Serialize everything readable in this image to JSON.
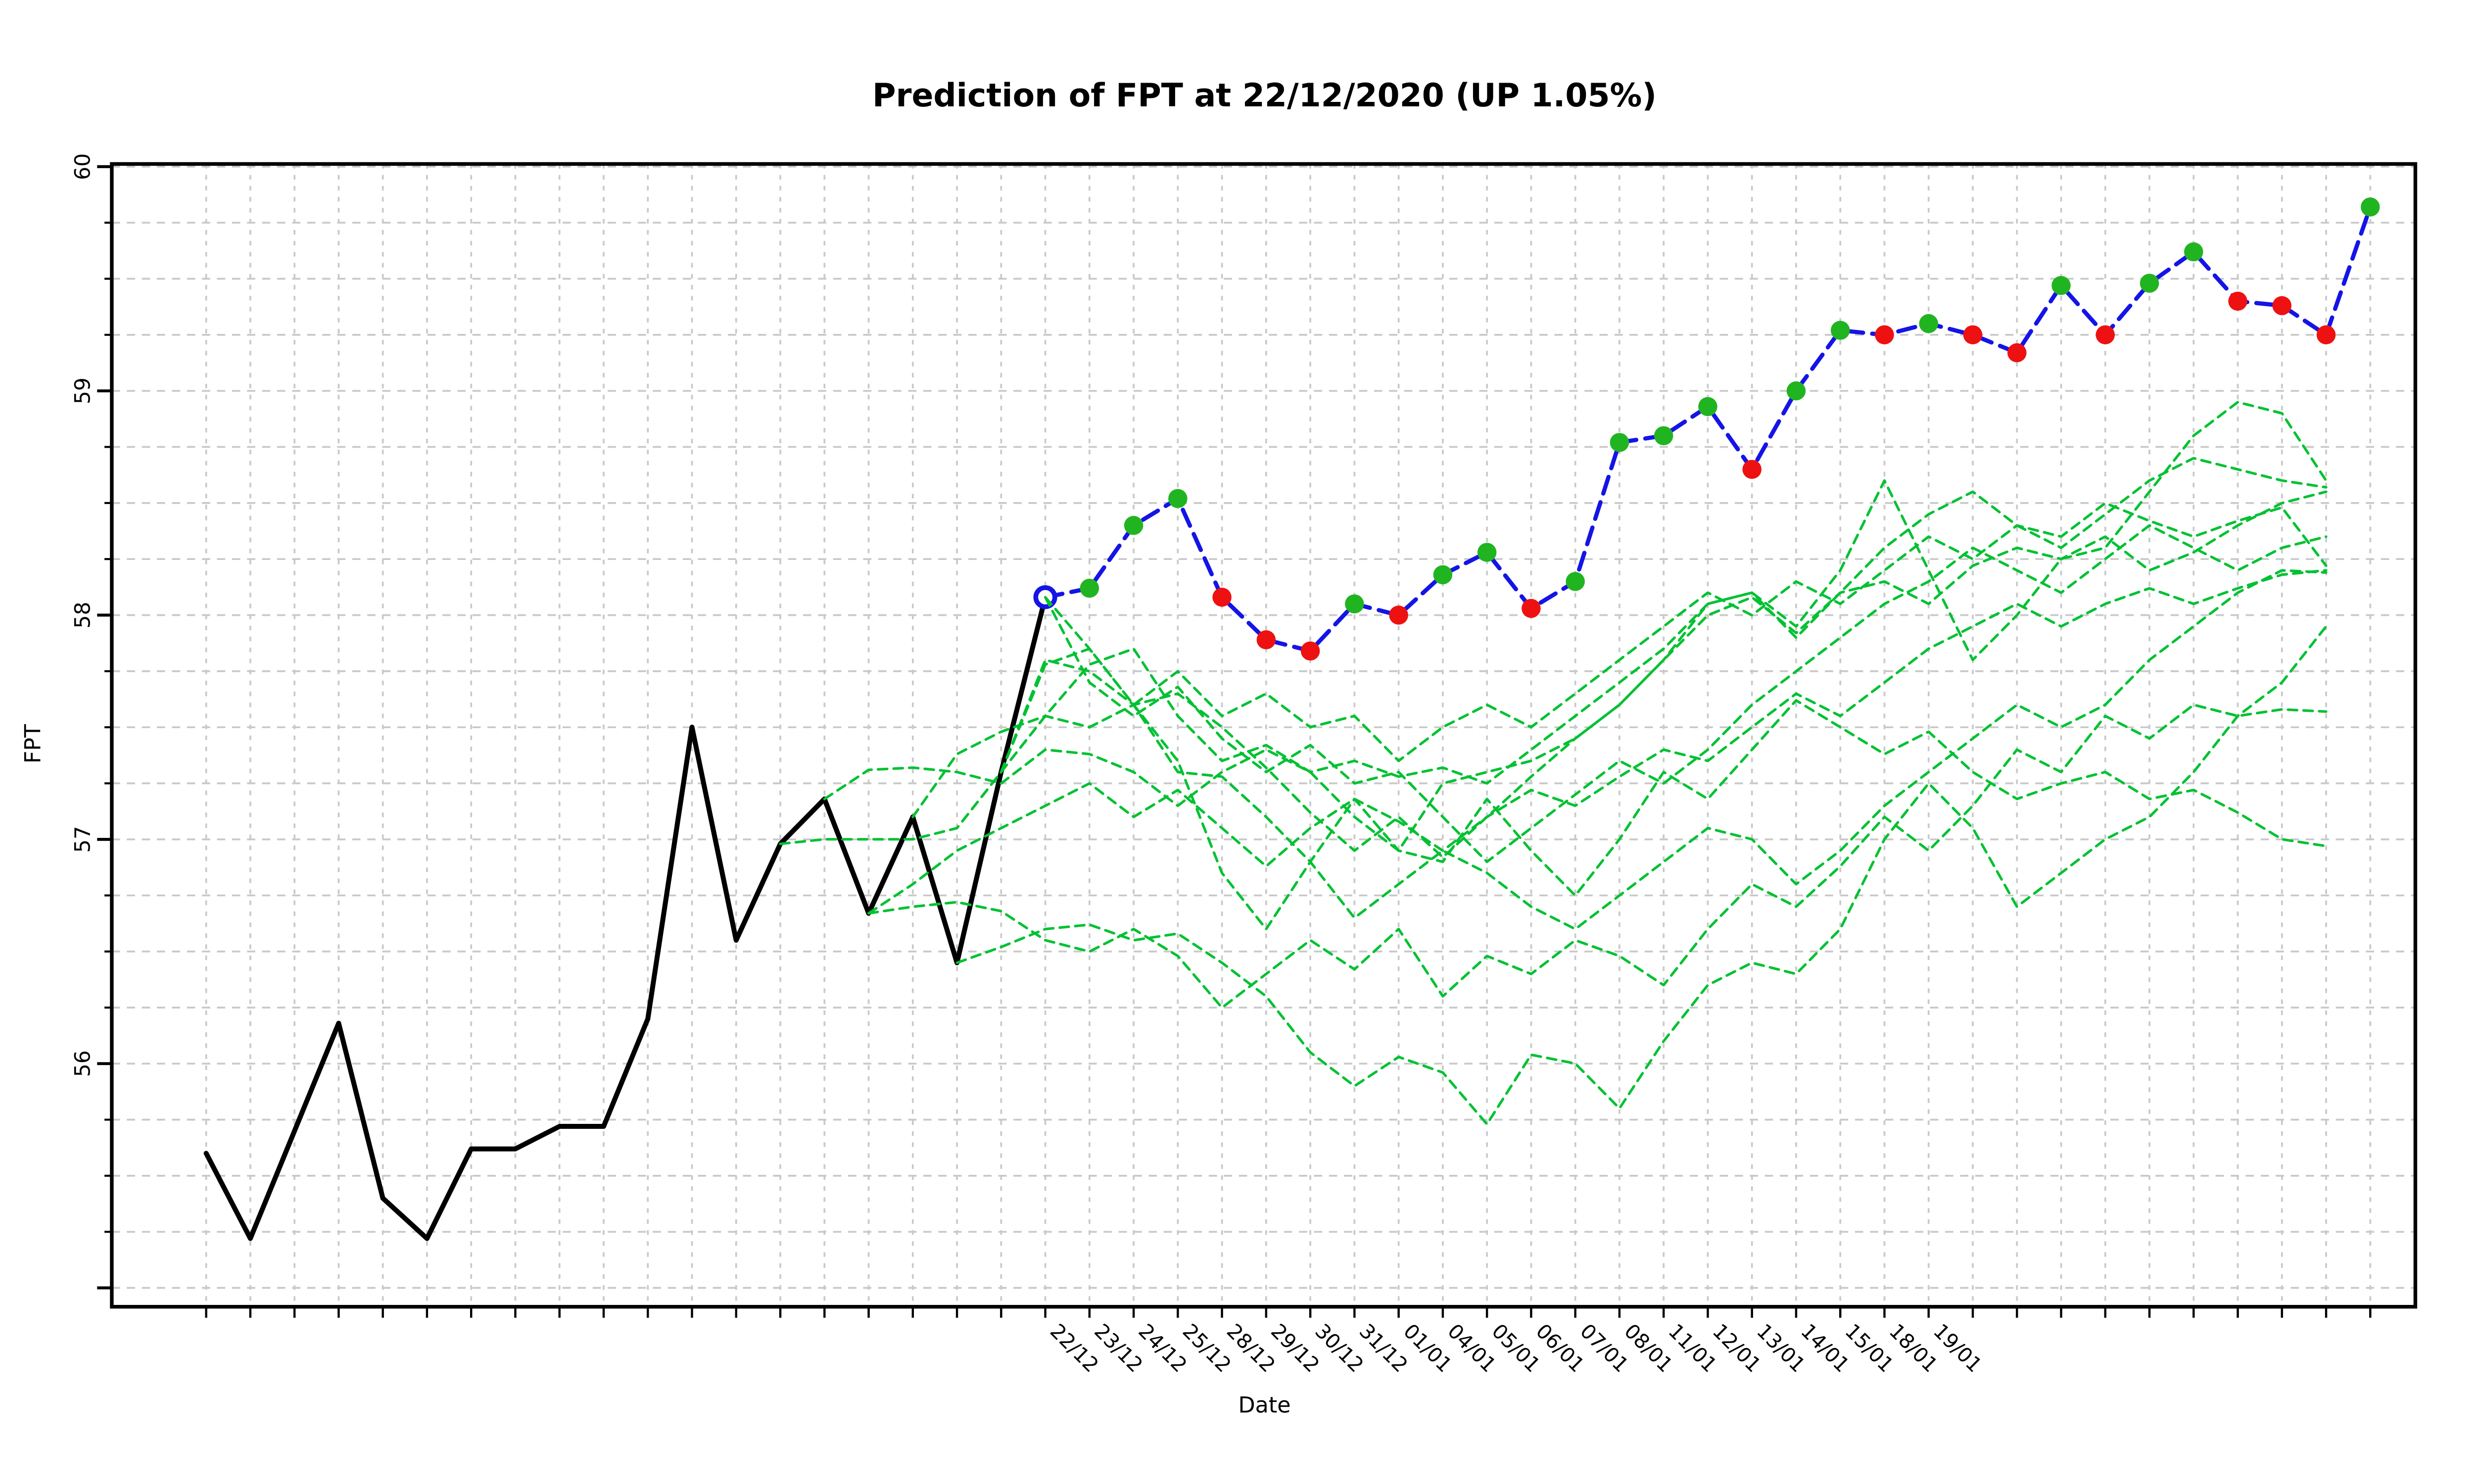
{
  "title": "Prediction of FPT at 22/12/2020 (UP 1.05%)",
  "x_axis": {
    "label": "Date",
    "tick_labels": [
      "22/12",
      "23/12",
      "24/12",
      "25/12",
      "28/12",
      "29/12",
      "30/12",
      "31/12",
      "01/01",
      "04/01",
      "05/01",
      "06/01",
      "07/01",
      "08/01",
      "11/01",
      "12/01",
      "13/01",
      "14/01",
      "15/01",
      "18/01",
      "19/01"
    ]
  },
  "y_axis": {
    "label": "FPT",
    "tick_labels": [
      "56",
      "57",
      "58",
      "59",
      "60"
    ]
  },
  "colors": {
    "history": "#000000",
    "prediction_line": "#1414e6",
    "up_dot": "#21b421",
    "down_dot": "#ee1111",
    "simulation": "#00c132",
    "grid": "#c9c9c9",
    "box": "#000000",
    "background": "#ffffff"
  },
  "chart_data": {
    "type": "line",
    "title": "Prediction of FPT at 22/12/2020 (UP 1.05%)",
    "xlabel": "Date",
    "ylabel": "FPT",
    "ylim": [
      54.9,
      60.05
    ],
    "y_major_ticks": [
      56,
      57,
      58,
      59,
      60
    ],
    "y_gridline_step": 0.25,
    "n_positions": 50,
    "label_start_index": 19,
    "grid": true,
    "legend": "none",
    "series": [
      {
        "name": "history",
        "role": "actual-price",
        "color": "#000000",
        "style": "solid",
        "start_index": 0,
        "values": [
          55.6,
          55.22,
          55.7,
          56.18,
          55.4,
          55.22,
          55.62,
          55.62,
          55.72,
          55.72,
          56.2,
          57.5,
          56.55,
          56.98,
          57.18,
          56.67,
          57.1,
          56.45,
          57.3,
          58.08
        ]
      },
      {
        "name": "prediction",
        "role": "predicted-price",
        "color": "#1414e6",
        "style": "dashed",
        "start_index": 19,
        "values": [
          58.08,
          58.12,
          58.4,
          58.52,
          58.08,
          57.89,
          57.84,
          58.05,
          58.0,
          58.18,
          58.28,
          58.03,
          58.15,
          58.77,
          58.8,
          58.93,
          58.65,
          59.0,
          59.27,
          59.25,
          59.3,
          59.25,
          59.17,
          59.47,
          59.25,
          59.48,
          59.62,
          59.4,
          59.38,
          59.25,
          59.82
        ],
        "point_colors": [
          "open",
          "up",
          "up",
          "up",
          "down",
          "down",
          "down",
          "up",
          "down",
          "up",
          "up",
          "down",
          "up",
          "up",
          "up",
          "up",
          "down",
          "up",
          "up",
          "down",
          "up",
          "down",
          "down",
          "up",
          "down",
          "up",
          "up",
          "down",
          "down",
          "down",
          "up"
        ]
      },
      {
        "name": "simulation-1",
        "role": "monte-carlo-path",
        "color": "#00c132",
        "style": "dashed",
        "start_index": 13,
        "values": [
          56.98,
          57.0,
          57.0,
          57.0,
          57.05,
          57.3,
          57.78,
          57.85,
          57.6,
          57.35,
          56.85,
          56.6,
          56.9,
          57.18,
          56.95,
          56.9,
          57.18,
          56.95,
          56.75,
          57.0,
          57.3,
          57.18,
          57.4,
          57.62,
          57.5,
          57.38,
          57.48,
          57.3,
          57.18,
          57.25,
          57.3,
          57.18,
          57.22,
          57.12,
          57.0,
          56.97
        ]
      },
      {
        "name": "simulation-2",
        "role": "monte-carlo-path",
        "color": "#00c132",
        "style": "dashed",
        "start_index": 14,
        "values": [
          57.18,
          57.31,
          57.32,
          57.3,
          57.25,
          57.4,
          57.38,
          57.3,
          57.15,
          57.3,
          57.4,
          57.3,
          57.1,
          56.95,
          57.25,
          57.3,
          57.35,
          57.45,
          57.6,
          57.8,
          58.05,
          58.1,
          57.95,
          58.2,
          58.6,
          58.2,
          57.8,
          58.0,
          58.25,
          58.3,
          58.55,
          58.8,
          58.95,
          58.9,
          58.6
        ]
      },
      {
        "name": "simulation-3",
        "role": "monte-carlo-path",
        "color": "#00c132",
        "style": "dashed",
        "start_index": 15,
        "values": [
          56.67,
          56.7,
          56.72,
          56.68,
          56.55,
          56.5,
          56.6,
          56.48,
          56.25,
          56.4,
          56.55,
          56.42,
          56.6,
          56.3,
          56.48,
          56.4,
          56.55,
          56.48,
          56.35,
          56.6,
          56.8,
          56.7,
          56.88,
          57.1,
          56.95,
          57.15,
          57.4,
          57.3,
          57.55,
          57.45,
          57.6,
          57.55,
          57.58,
          57.57
        ]
      },
      {
        "name": "simulation-4",
        "role": "monte-carlo-path",
        "color": "#00c132",
        "style": "dashed",
        "start_index": 16,
        "values": [
          57.1,
          57.38,
          57.48,
          57.55,
          57.5,
          57.6,
          57.65,
          57.5,
          57.32,
          57.12,
          56.95,
          57.1,
          56.92,
          57.1,
          57.28,
          57.45,
          57.6,
          57.8,
          58.0,
          58.08,
          57.92,
          58.1,
          58.15,
          58.05,
          58.22,
          58.3,
          58.25,
          58.35,
          58.2,
          58.28,
          58.4,
          58.5,
          58.55
        ]
      },
      {
        "name": "simulation-5",
        "role": "monte-carlo-path",
        "color": "#00c132",
        "style": "dashed",
        "start_index": 17,
        "values": [
          56.45,
          56.52,
          56.6,
          56.62,
          56.55,
          56.58,
          56.45,
          56.3,
          56.05,
          55.9,
          56.03,
          55.96,
          55.73,
          56.04,
          56.0,
          55.8,
          56.1,
          56.35,
          56.45,
          56.4,
          56.6,
          57.0,
          57.25,
          57.05,
          56.7,
          56.85,
          57.0,
          57.1,
          57.3,
          57.55,
          57.7,
          57.95
        ]
      },
      {
        "name": "simulation-6",
        "role": "monte-carlo-path",
        "color": "#00c132",
        "style": "dashed",
        "start_index": 18,
        "values": [
          57.3,
          57.55,
          57.78,
          57.85,
          57.55,
          57.35,
          57.42,
          57.3,
          57.35,
          57.28,
          57.32,
          57.25,
          57.4,
          57.55,
          57.7,
          57.85,
          58.05,
          58.1,
          57.9,
          58.1,
          58.3,
          58.45,
          58.55,
          58.4,
          58.3,
          58.45,
          58.6,
          58.7,
          58.65,
          58.6,
          58.57
        ]
      },
      {
        "name": "simulation-7",
        "role": "monte-carlo-path",
        "color": "#00c132",
        "style": "dashed",
        "start_index": 18,
        "values": [
          57.3,
          57.8,
          57.75,
          57.6,
          57.3,
          57.28,
          57.1,
          56.9,
          56.65,
          56.8,
          56.95,
          56.85,
          56.7,
          56.6,
          56.75,
          56.9,
          57.05,
          57.0,
          56.8,
          56.95,
          57.15,
          57.3,
          57.45,
          57.6,
          57.5,
          57.6,
          57.8,
          57.95,
          58.1,
          58.2,
          58.19
        ]
      },
      {
        "name": "simulation-8",
        "role": "monte-carlo-path",
        "color": "#00c132",
        "style": "dashed",
        "start_index": 19,
        "values": [
          58.08,
          57.7,
          57.55,
          57.68,
          57.45,
          57.3,
          57.42,
          57.25,
          57.3,
          57.1,
          56.9,
          57.05,
          57.2,
          57.35,
          57.25,
          57.4,
          57.6,
          57.75,
          57.9,
          58.05,
          58.15,
          58.3,
          58.2,
          58.1,
          58.25,
          58.4,
          58.3,
          58.2,
          58.3,
          58.35
        ]
      },
      {
        "name": "simulation-9",
        "role": "monte-carlo-path",
        "color": "#00c132",
        "style": "dashed",
        "start_index": 19,
        "values": [
          58.08,
          57.85,
          57.6,
          57.75,
          57.55,
          57.65,
          57.5,
          57.55,
          57.35,
          57.5,
          57.6,
          57.5,
          57.65,
          57.8,
          57.95,
          58.1,
          58.0,
          58.15,
          58.05,
          58.2,
          58.35,
          58.25,
          58.4,
          58.35,
          58.5,
          58.42,
          58.35,
          58.42,
          58.48,
          58.22
        ]
      },
      {
        "name": "simulation-10",
        "role": "monte-carlo-path",
        "color": "#00c132",
        "style": "dashed",
        "start_index": 15,
        "values": [
          56.67,
          56.8,
          56.95,
          57.05,
          57.15,
          57.25,
          57.1,
          57.22,
          57.05,
          56.88,
          57.05,
          57.18,
          57.08,
          56.95,
          57.1,
          57.22,
          57.15,
          57.28,
          57.4,
          57.35,
          57.5,
          57.65,
          57.55,
          57.7,
          57.85,
          57.95,
          58.05,
          57.95,
          58.05,
          58.12,
          58.05,
          58.12,
          58.18,
          58.2
        ]
      }
    ]
  }
}
